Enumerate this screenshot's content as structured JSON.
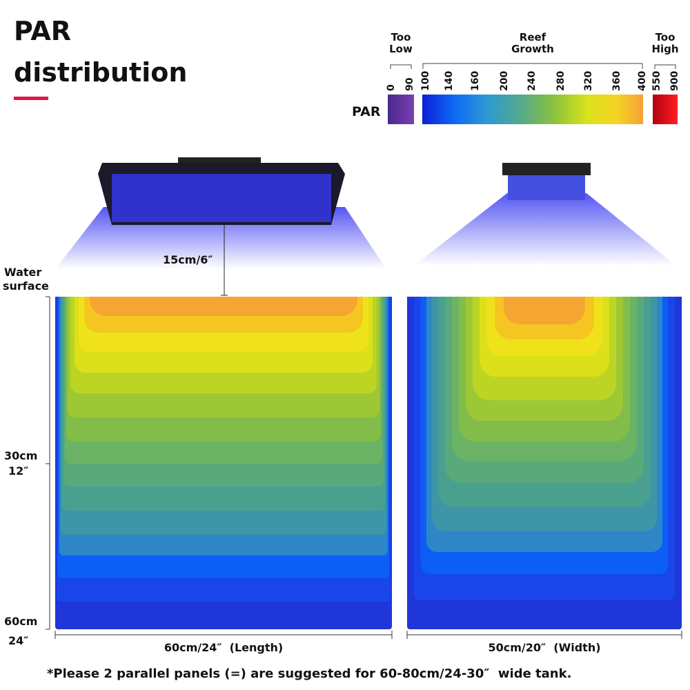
{
  "header": {
    "title_line1": "PAR",
    "title_line2": "distribution"
  },
  "legend": {
    "label": "PAR",
    "groups": [
      {
        "label": [
          "Too",
          "Low"
        ],
        "ticks": [
          "0",
          "90"
        ]
      },
      {
        "label": [
          "Reef",
          "Growth"
        ],
        "ticks": [
          "100",
          "140",
          "160",
          "200",
          "240",
          "280",
          "320",
          "360",
          "400"
        ]
      },
      {
        "label": [
          "Too",
          "High"
        ],
        "ticks": [
          "550",
          "900"
        ]
      }
    ]
  },
  "lamp_distance": "15cm/6″",
  "depth_axis": {
    "surface": [
      "Water",
      "surface"
    ],
    "mid": [
      "30cm",
      "12″"
    ],
    "bottom": [
      "60cm",
      "24″"
    ]
  },
  "panels": [
    {
      "caption": "60cm/24″  (Length)"
    },
    {
      "caption": "50cm/20″  (Width)"
    }
  ],
  "footnote": "*Please 2 parallel panels (=) are suggested for 60-80cm/24-30″  wide tank."
}
